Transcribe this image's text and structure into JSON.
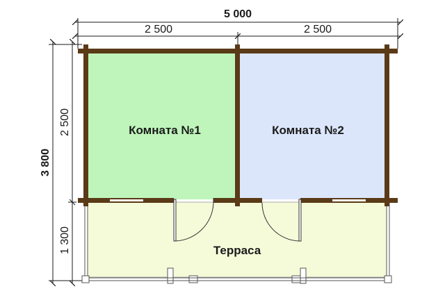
{
  "dimensions": {
    "total_width": "5 000",
    "left_width": "2 500",
    "right_width": "2 500",
    "total_height": "3 800",
    "rooms_height": "2 500",
    "terrace_height": "1 300"
  },
  "rooms": {
    "room1": {
      "label": "Комната №1",
      "color": "#bff5bb"
    },
    "room2": {
      "label": "Комната №2",
      "color": "#dce6fb"
    },
    "terrace": {
      "label": "Терраса",
      "color": "#f5fbd9"
    }
  },
  "colors": {
    "wall": "#5a3a17",
    "dimension_line": "#1a1a1a"
  }
}
